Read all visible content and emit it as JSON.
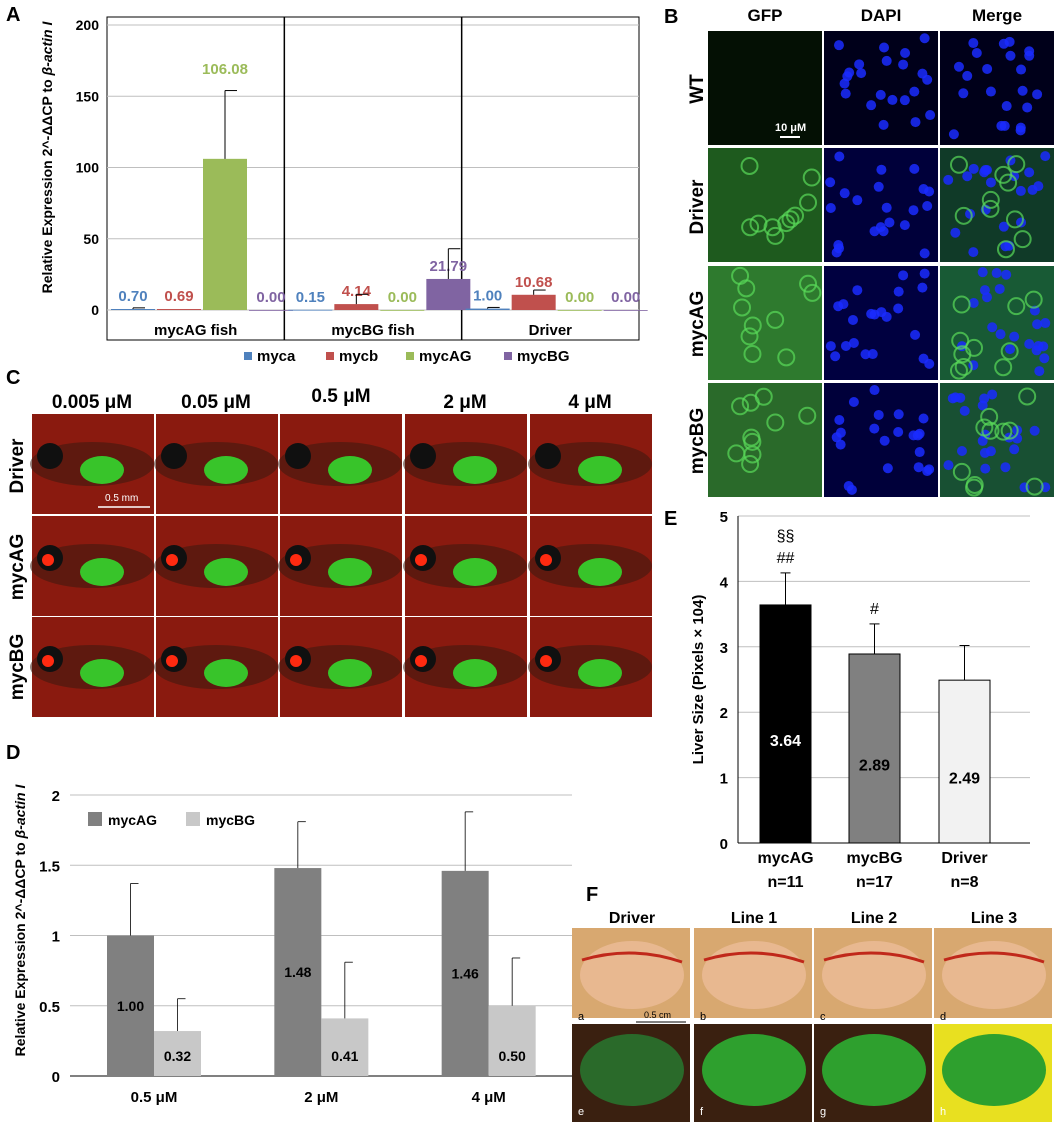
{
  "panels": {
    "A": "A",
    "B": "B",
    "C": "C",
    "D": "D",
    "E": "E",
    "F": "F"
  },
  "chart_data": [
    {
      "id": "A",
      "type": "bar",
      "ylabel": "Relative Expression 2^-ΔΔCP to β-actin I",
      "ylim": [
        0,
        200
      ],
      "yticks": [
        "0",
        "50",
        "100",
        "150",
        "200"
      ],
      "categories": [
        "mycAG fish",
        "mycBG fish",
        "Driver"
      ],
      "series": [
        {
          "name": "myca",
          "color": "#4f81bd",
          "values": [
            0.7,
            0.15,
            1.0
          ],
          "labels": [
            "0.70",
            "0.15",
            "1.00"
          ]
        },
        {
          "name": "mycb",
          "color": "#c0504d",
          "values": [
            0.69,
            4.14,
            10.68
          ],
          "labels": [
            "0.69",
            "4.14",
            "10.68"
          ]
        },
        {
          "name": "mycAG",
          "color": "#9bbb59",
          "values": [
            106.08,
            0.0,
            0.0
          ],
          "labels": [
            "106.08",
            "0.00",
            "0.00"
          ]
        },
        {
          "name": "mycBG",
          "color": "#8064a2",
          "values": [
            0.0,
            21.79,
            0.0
          ],
          "labels": [
            "0.00",
            "21.79",
            "0.00"
          ]
        }
      ],
      "legend_position": "bottom",
      "grid": true
    },
    {
      "id": "D",
      "type": "bar",
      "ylabel": "Relative Expression 2^-ΔΔCP to β-actin I",
      "ylim": [
        0,
        2
      ],
      "yticks": [
        "0",
        "0.5",
        "1",
        "1.5",
        "2"
      ],
      "categories": [
        "0.5 μM",
        "2 μM",
        "4 μM"
      ],
      "series": [
        {
          "name": "mycAG",
          "color": "#808080",
          "values": [
            1.0,
            1.48,
            1.46
          ],
          "labels": [
            "1.00",
            "1.48",
            "1.46"
          ]
        },
        {
          "name": "mycBG",
          "color": "#c8c8c8",
          "values": [
            0.32,
            0.41,
            0.5
          ],
          "labels": [
            "0.32",
            "0.41",
            "0.50"
          ]
        }
      ],
      "legend_position": "top-left",
      "grid": true
    },
    {
      "id": "E",
      "type": "bar",
      "ylabel": "Liver Size (Pixels × 104)",
      "ylim": [
        0,
        5
      ],
      "yticks": [
        "0",
        "1",
        "2",
        "3",
        "4",
        "5"
      ],
      "categories": [
        "mycAG",
        "mycBG",
        "Driver"
      ],
      "sublabels": [
        "n=11",
        "n=17",
        "n=8"
      ],
      "values": [
        3.64,
        2.89,
        2.49
      ],
      "labels": [
        "3.64",
        "2.89",
        "2.49"
      ],
      "colors": [
        "#000000",
        "#808080",
        "#f2f2f2"
      ],
      "label_colors": [
        "#ffffff",
        "#000000",
        "#000000"
      ],
      "annotations": [
        [
          "§§",
          "##"
        ],
        [
          "#"
        ],
        []
      ],
      "grid": true
    }
  ],
  "panelB": {
    "columns": [
      "GFP",
      "DAPI",
      "Merge"
    ],
    "rows": [
      "WT",
      "Driver",
      "mycAG",
      "mycBG"
    ],
    "scale": "10 μM"
  },
  "panelC": {
    "columns": [
      "0.005 μM",
      "0.05 μM",
      "0.5 μM",
      "2 μM",
      "4 μM"
    ],
    "rows": [
      "Driver",
      "mycAG",
      "mycBG"
    ],
    "scale": "0.5 mm"
  },
  "panelF": {
    "columns": [
      "Driver",
      "Line 1",
      "Line 2",
      "Line 3"
    ],
    "letters_top": [
      "a",
      "b",
      "c",
      "d"
    ],
    "letters_bottom": [
      "e",
      "f",
      "g",
      "h"
    ],
    "scale": "0.5 cm"
  }
}
